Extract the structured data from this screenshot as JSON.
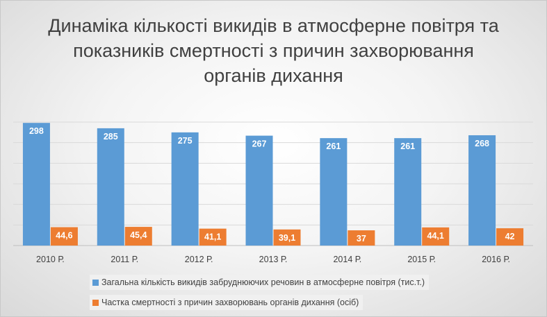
{
  "chart_data": {
    "type": "bar",
    "title": "Динаміка кількості викидів в атмосферне повітря та показників смертності з причин захворювання органів дихання",
    "categories": [
      "2010 Р.",
      "2011 Р.",
      "2012 Р.",
      "2013 Р.",
      "2014 Р.",
      "2015 Р.",
      "2016 Р."
    ],
    "series": [
      {
        "name": "Загальна кількість викидів забруднюючих речовин в атмосферне повітря (тис.т.)",
        "values": [
          298,
          285,
          275,
          267,
          261,
          261,
          268
        ],
        "labels": [
          "298",
          "285",
          "275",
          "267",
          "261",
          "261",
          "268"
        ],
        "color": "#5b9bd5"
      },
      {
        "name": "Частка смертності з причин захворювань органів дихання (осіб)",
        "values": [
          44.6,
          45.4,
          41.1,
          39.1,
          37,
          44.1,
          42
        ],
        "labels": [
          "44,6",
          "45,4",
          "41,1",
          "39,1",
          "37",
          "44,1",
          "42"
        ],
        "color": "#ed7d31"
      }
    ],
    "ylim": [
      0,
      300
    ],
    "grid": true,
    "legend_position": "bottom"
  }
}
